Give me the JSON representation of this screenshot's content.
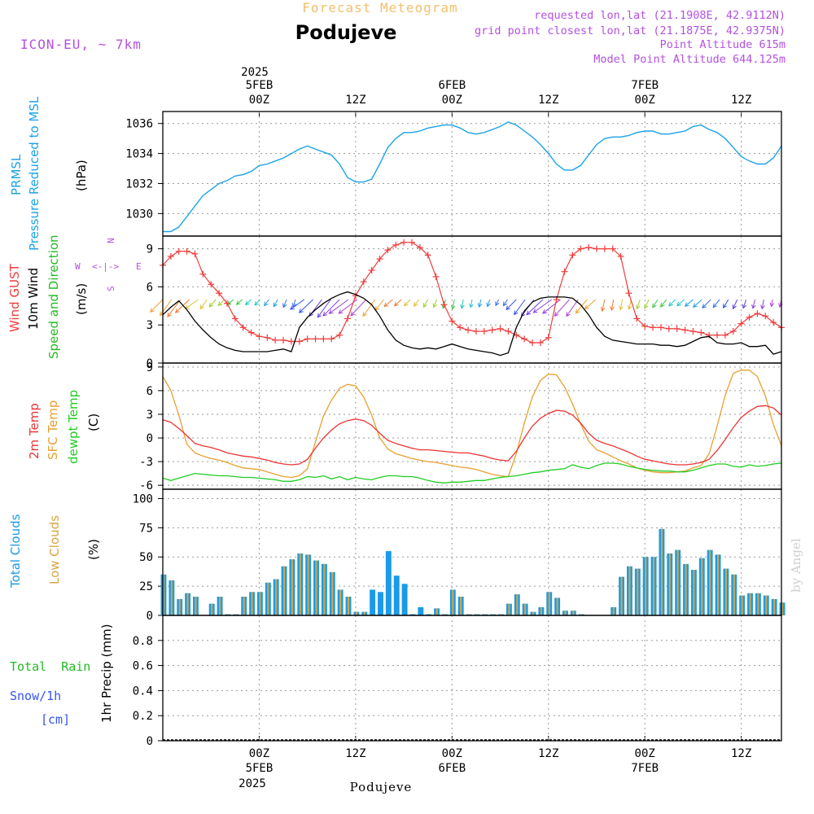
{
  "header": {
    "subtitle_top": "Forecast Meteogram",
    "title": "Podujeve",
    "model": "ICON-EU, ~ 7km",
    "requested": "requested lon,lat (21.1908E, 42.9112N)",
    "gridpoint": "grid point closest lon,lat (21.1875E, 42.9375N)",
    "point_alt": "Point Altitude 615m",
    "model_alt": "Model Point Altitude 644.125m",
    "footer": "Podujeve",
    "credit": "by Angel"
  },
  "time_axis": {
    "top_year": "2025",
    "bottom_year": "2025",
    "ticks": [
      {
        "hour": 12,
        "label": "00Z",
        "date": "5FEB"
      },
      {
        "hour": 24,
        "label": "12Z",
        "date": ""
      },
      {
        "hour": 36,
        "label": "00Z",
        "date": "6FEB"
      },
      {
        "hour": 48,
        "label": "12Z",
        "date": ""
      },
      {
        "hour": 60,
        "label": "00Z",
        "date": "7FEB"
      },
      {
        "hour": 72,
        "label": "12Z",
        "date": ""
      }
    ],
    "start_hour": 0,
    "end_hour": 77
  },
  "labels": {
    "prmsl_a": "PRMSL",
    "prmsl_b": "Pressure Reduced to MSL",
    "prmsl_unit": "(hPa)",
    "wind_gust": "Wind GUST",
    "wind_10m": "10m Wind",
    "wind_dir": "Speed and Direction",
    "wind_unit": "(m/s)",
    "compass_n": "N",
    "compass_s": "S",
    "compass_w": "W",
    "compass_e": "E",
    "compass_h": "<-|->",
    "temp_2m": "2m Temp",
    "temp_sfc": "SFC Temp",
    "temp_dew": "dewpt Temp",
    "temp_unit": "(C)",
    "cloud_total": "Total Clouds",
    "cloud_low": "Low Clouds",
    "cloud_unit": "(%)",
    "precip_a": "Total  Rain",
    "precip_b": "Snow/1h",
    "precip_c": "[cm]",
    "precip_axis": "1hr Precip (mm)"
  },
  "colors": {
    "pressure": "#1aa3e8",
    "gust": "#f03c3c",
    "wind": "#000000",
    "temp2m": "#ee3333",
    "sfc": "#e8a030",
    "dew": "#22cc22",
    "total_cloud": "#1a9be8",
    "low_cloud": "#d9a441",
    "label_purple": "#b450e0",
    "label_green": "#22bb22",
    "label_blue": "#3355ee",
    "title_orange": "#f0c070"
  },
  "chart_data": [
    {
      "type": "line",
      "name": "pressure",
      "title": "PRMSL Pressure Reduced to MSL",
      "ylabel": "(hPa)",
      "ylim": [
        1028.5,
        1036.8
      ],
      "yticks": [
        1030,
        1032,
        1034,
        1036
      ],
      "x": [
        0,
        1,
        2,
        3,
        4,
        5,
        6,
        7,
        8,
        9,
        10,
        11,
        12,
        13,
        14,
        15,
        16,
        17,
        18,
        19,
        20,
        21,
        22,
        23,
        24,
        25,
        26,
        27,
        28,
        29,
        30,
        31,
        32,
        33,
        34,
        35,
        36,
        37,
        38,
        39,
        40,
        41,
        42,
        43,
        44,
        45,
        46,
        47,
        48,
        49,
        50,
        51,
        52,
        53,
        54,
        55,
        56,
        57,
        58,
        59,
        60,
        61,
        62,
        63,
        64,
        65,
        66,
        67,
        68,
        69,
        70,
        71,
        72,
        73,
        74,
        75,
        76,
        77
      ],
      "values": [
        1028.8,
        1028.8,
        1029.1,
        1029.8,
        1030.5,
        1031.2,
        1031.6,
        1032.0,
        1032.2,
        1032.5,
        1032.6,
        1032.8,
        1033.2,
        1033.3,
        1033.5,
        1033.7,
        1034.0,
        1034.3,
        1034.5,
        1034.3,
        1034.1,
        1033.9,
        1033.3,
        1032.4,
        1032.1,
        1032.1,
        1032.3,
        1033.3,
        1034.4,
        1035.0,
        1035.4,
        1035.4,
        1035.5,
        1035.7,
        1035.8,
        1035.9,
        1035.9,
        1035.7,
        1035.4,
        1035.3,
        1035.4,
        1035.6,
        1035.8,
        1036.1,
        1035.9,
        1035.5,
        1035.1,
        1034.6,
        1034.0,
        1033.3,
        1032.9,
        1032.9,
        1033.2,
        1033.9,
        1034.6,
        1035.0,
        1035.1,
        1035.1,
        1035.2,
        1035.4,
        1035.5,
        1035.5,
        1035.3,
        1035.3,
        1035.4,
        1035.5,
        1035.8,
        1035.9,
        1035.6,
        1035.4,
        1035.0,
        1034.4,
        1033.8,
        1033.5,
        1033.3,
        1033.3,
        1033.7,
        1034.5
      ]
    },
    {
      "type": "line",
      "name": "wind",
      "title": "Wind GUST / 10m Wind Speed and Direction",
      "ylabel": "(m/s)",
      "ylim": [
        0,
        10
      ],
      "yticks": [
        0,
        3,
        6,
        9
      ],
      "x": [
        0,
        1,
        2,
        3,
        4,
        5,
        6,
        7,
        8,
        9,
        10,
        11,
        12,
        13,
        14,
        15,
        16,
        17,
        18,
        19,
        20,
        21,
        22,
        23,
        24,
        25,
        26,
        27,
        28,
        29,
        30,
        31,
        32,
        33,
        34,
        35,
        36,
        37,
        38,
        39,
        40,
        41,
        42,
        43,
        44,
        45,
        46,
        47,
        48,
        49,
        50,
        51,
        52,
        53,
        54,
        55,
        56,
        57,
        58,
        59,
        60,
        61,
        62,
        63,
        64,
        65,
        66,
        67,
        68,
        69,
        70,
        71,
        72,
        73,
        74,
        75,
        76,
        77
      ],
      "series": [
        {
          "name": "Wind GUST",
          "values": [
            7.7,
            8.4,
            8.8,
            8.8,
            8.6,
            7.0,
            6.2,
            5.5,
            4.7,
            3.5,
            2.8,
            2.4,
            2.1,
            2.0,
            1.8,
            1.8,
            1.7,
            1.7,
            1.9,
            1.9,
            1.9,
            1.9,
            2.2,
            3.5,
            5.3,
            6.4,
            7.3,
            8.2,
            8.9,
            9.3,
            9.5,
            9.5,
            9.1,
            8.5,
            6.8,
            4.6,
            3.3,
            2.8,
            2.6,
            2.5,
            2.5,
            2.6,
            2.7,
            2.5,
            2.2,
            1.9,
            1.6,
            1.6,
            2.0,
            5.0,
            7.2,
            8.5,
            9.0,
            9.1,
            9.0,
            9.0,
            9.0,
            8.4,
            5.5,
            3.5,
            2.9,
            2.8,
            2.8,
            2.7,
            2.7,
            2.6,
            2.5,
            2.4,
            2.2,
            2.2,
            2.2,
            2.5,
            3.1,
            3.6,
            3.9,
            3.7,
            3.2,
            2.8
          ]
        },
        {
          "name": "10m Wind",
          "values": [
            3.8,
            4.4,
            4.9,
            4.2,
            3.3,
            2.6,
            2.0,
            1.5,
            1.2,
            1.0,
            0.9,
            0.9,
            0.9,
            0.9,
            1.0,
            1.1,
            0.9,
            2.8,
            3.6,
            4.2,
            4.7,
            5.1,
            5.4,
            5.6,
            5.4,
            5.1,
            4.6,
            3.7,
            2.6,
            1.8,
            1.4,
            1.2,
            1.1,
            1.2,
            1.1,
            1.3,
            1.5,
            1.3,
            1.1,
            1.0,
            0.9,
            0.8,
            0.6,
            0.8,
            2.8,
            4.1,
            4.8,
            5.1,
            5.2,
            5.2,
            5.2,
            5.1,
            4.6,
            3.8,
            2.8,
            2.1,
            1.8,
            1.7,
            1.6,
            1.5,
            1.5,
            1.5,
            1.4,
            1.4,
            1.3,
            1.4,
            1.7,
            2.0,
            2.1,
            1.6,
            1.5,
            1.5,
            1.6,
            1.3,
            1.3,
            1.4,
            0.7,
            0.9
          ]
        }
      ],
      "arrows": {
        "note": "wind direction barbs along the 10m wind line, color gradient orange->green->cyan->blue->purple",
        "count": 70
      }
    },
    {
      "type": "line",
      "name": "temperature",
      "title": "2m Temp / SFC Temp / dewpt Temp",
      "ylabel": "(C)",
      "ylim": [
        -6.5,
        9.5
      ],
      "yticks": [
        -6,
        -3,
        0,
        3,
        6,
        9
      ],
      "x": [
        0,
        1,
        2,
        3,
        4,
        5,
        6,
        7,
        8,
        9,
        10,
        11,
        12,
        13,
        14,
        15,
        16,
        17,
        18,
        19,
        20,
        21,
        22,
        23,
        24,
        25,
        26,
        27,
        28,
        29,
        30,
        31,
        32,
        33,
        34,
        35,
        36,
        37,
        38,
        39,
        40,
        41,
        42,
        43,
        44,
        45,
        46,
        47,
        48,
        49,
        50,
        51,
        52,
        53,
        54,
        55,
        56,
        57,
        58,
        59,
        60,
        61,
        62,
        63,
        64,
        65,
        66,
        67,
        68,
        69,
        70,
        71,
        72,
        73,
        74,
        75,
        76,
        77
      ],
      "series": [
        {
          "name": "2m Temp",
          "values": [
            2.3,
            2.0,
            1.2,
            0.3,
            -0.7,
            -1.0,
            -1.2,
            -1.5,
            -1.9,
            -2.1,
            -2.3,
            -2.4,
            -2.6,
            -2.8,
            -3.1,
            -3.3,
            -3.4,
            -3.3,
            -2.7,
            -1.3,
            0.0,
            1.0,
            1.8,
            2.2,
            2.4,
            2.2,
            1.6,
            0.6,
            -0.3,
            -0.7,
            -1.0,
            -1.3,
            -1.5,
            -1.5,
            -1.6,
            -1.7,
            -1.8,
            -1.9,
            -1.9,
            -2.1,
            -2.3,
            -2.6,
            -2.8,
            -2.9,
            -1.7,
            0.0,
            1.5,
            2.5,
            3.1,
            3.5,
            3.4,
            2.9,
            1.9,
            0.6,
            -0.3,
            -0.7,
            -1.0,
            -1.4,
            -1.8,
            -2.3,
            -2.7,
            -2.9,
            -3.1,
            -3.3,
            -3.4,
            -3.4,
            -3.3,
            -3.1,
            -2.7,
            -1.6,
            -0.2,
            1.3,
            2.6,
            3.4,
            4.0,
            4.1,
            3.8,
            2.9
          ]
        },
        {
          "name": "SFC Temp",
          "values": [
            7.8,
            6.0,
            2.9,
            -0.8,
            -1.9,
            -2.3,
            -2.6,
            -2.8,
            -3.1,
            -3.5,
            -3.8,
            -3.9,
            -4.0,
            -4.3,
            -4.6,
            -4.9,
            -5.0,
            -4.8,
            -3.9,
            -0.5,
            2.8,
            4.8,
            6.3,
            6.8,
            6.6,
            5.2,
            2.9,
            0.0,
            -1.4,
            -2.0,
            -2.3,
            -2.6,
            -2.8,
            -3.0,
            -3.1,
            -3.3,
            -3.5,
            -3.7,
            -3.8,
            -4.0,
            -4.3,
            -4.6,
            -4.8,
            -4.9,
            -2.0,
            1.9,
            5.2,
            7.3,
            8.1,
            8.0,
            6.5,
            4.3,
            1.8,
            -0.4,
            -1.5,
            -1.9,
            -2.4,
            -2.9,
            -3.3,
            -3.8,
            -4.1,
            -4.3,
            -4.4,
            -4.4,
            -4.3,
            -4.2,
            -3.8,
            -3.5,
            -2.0,
            1.5,
            5.4,
            8.2,
            8.6,
            8.6,
            7.8,
            5.3,
            1.7,
            -1.0
          ]
        },
        {
          "name": "dewpt Temp",
          "values": [
            -5.1,
            -5.4,
            -5.1,
            -4.8,
            -4.5,
            -4.6,
            -4.7,
            -4.8,
            -4.8,
            -4.9,
            -5.0,
            -5.0,
            -5.1,
            -5.2,
            -5.3,
            -5.5,
            -5.5,
            -5.3,
            -4.9,
            -5.0,
            -4.8,
            -5.2,
            -4.9,
            -5.3,
            -5.0,
            -5.2,
            -5.3,
            -5.0,
            -4.8,
            -4.8,
            -4.9,
            -4.9,
            -5.1,
            -5.4,
            -5.6,
            -5.7,
            -5.6,
            -5.6,
            -5.5,
            -5.4,
            -5.4,
            -5.2,
            -5.0,
            -4.9,
            -4.8,
            -4.6,
            -4.4,
            -4.3,
            -4.1,
            -4.0,
            -3.9,
            -3.4,
            -3.7,
            -3.9,
            -3.5,
            -3.2,
            -3.2,
            -3.3,
            -3.6,
            -3.8,
            -4.0,
            -4.1,
            -4.2,
            -4.2,
            -4.3,
            -4.3,
            -4.1,
            -3.8,
            -3.5,
            -3.3,
            -3.3,
            -3.6,
            -3.7,
            -3.4,
            -3.6,
            -3.5,
            -3.3,
            -3.2
          ]
        }
      ]
    },
    {
      "type": "bar",
      "name": "clouds",
      "title": "Total Clouds / Low Clouds",
      "ylabel": "(%)",
      "ylim": [
        0,
        108
      ],
      "yticks": [
        0,
        25,
        50,
        75,
        100
      ],
      "x": [
        0,
        1,
        2,
        3,
        4,
        5,
        6,
        7,
        8,
        9,
        10,
        11,
        12,
        13,
        14,
        15,
        16,
        17,
        18,
        19,
        20,
        21,
        22,
        23,
        24,
        25,
        26,
        27,
        28,
        29,
        30,
        31,
        32,
        33,
        34,
        35,
        36,
        37,
        38,
        39,
        40,
        41,
        42,
        43,
        44,
        45,
        46,
        47,
        48,
        49,
        50,
        51,
        52,
        53,
        54,
        55,
        56,
        57,
        58,
        59,
        60,
        61,
        62,
        63,
        64,
        65,
        66,
        67,
        68,
        69,
        70,
        71,
        72,
        73,
        74,
        75,
        76,
        77
      ],
      "series": [
        {
          "name": "Total Clouds",
          "values": [
            35,
            30,
            14,
            19,
            16,
            0,
            10,
            16,
            1,
            1,
            16,
            20,
            20,
            28,
            31,
            42,
            48,
            53,
            52,
            47,
            44,
            37,
            22,
            16,
            3,
            3,
            22,
            20,
            55,
            34,
            27,
            1,
            7,
            1,
            6,
            1,
            22,
            16,
            1,
            1,
            1,
            1,
            1,
            10,
            18,
            10,
            3,
            7,
            20,
            15,
            4,
            4,
            1,
            0,
            0,
            0,
            7,
            33,
            42,
            40,
            50,
            50,
            74,
            53,
            56,
            44,
            39,
            49,
            56,
            52,
            40,
            35,
            17,
            19,
            19,
            17,
            14,
            11
          ]
        },
        {
          "name": "Low Clouds",
          "values": [
            35,
            30,
            14,
            19,
            16,
            0,
            10,
            16,
            1,
            1,
            16,
            20,
            20,
            28,
            31,
            42,
            48,
            53,
            52,
            47,
            44,
            37,
            22,
            16,
            3,
            3,
            0,
            0,
            0,
            0,
            0,
            0,
            0,
            0,
            6,
            1,
            22,
            16,
            1,
            1,
            1,
            1,
            1,
            10,
            18,
            10,
            3,
            7,
            20,
            15,
            4,
            4,
            1,
            0,
            0,
            0,
            7,
            33,
            42,
            40,
            50,
            50,
            74,
            53,
            56,
            44,
            39,
            49,
            56,
            52,
            40,
            35,
            17,
            19,
            19,
            17,
            14,
            11
          ]
        }
      ]
    },
    {
      "type": "bar",
      "name": "precip",
      "title": "1hr Precip",
      "ylabel": "1hr Precip (mm)",
      "ylim": [
        0,
        1.0
      ],
      "yticks": [
        0,
        0.2,
        0.4,
        0.6,
        0.8
      ],
      "yticklabels": [
        "0",
        "0.2",
        "0.4",
        "0.6",
        "0.8"
      ],
      "x": [
        0,
        77
      ],
      "values": [
        0,
        0
      ]
    }
  ]
}
